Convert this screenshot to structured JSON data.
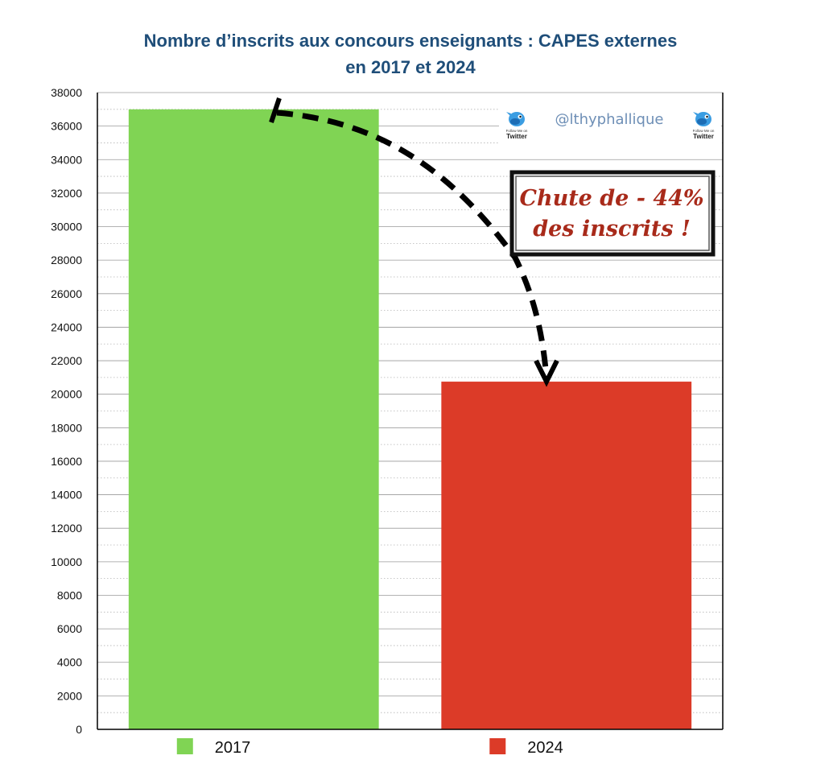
{
  "chart_data": {
    "type": "bar",
    "title": [
      "Nombre d’inscrits aux concours enseignants : CAPES externes",
      "en 2017 et 2024"
    ],
    "categories": [
      "2017",
      "2024"
    ],
    "values": [
      37000,
      20750
    ],
    "ylim": [
      0,
      38000
    ],
    "ytick_step": 2000,
    "yticks": [
      "0",
      "2000",
      "4000",
      "6000",
      "8000",
      "10000",
      "12000",
      "14000",
      "16000",
      "18000",
      "20000",
      "22000",
      "24000",
      "26000",
      "28000",
      "30000",
      "32000",
      "34000",
      "36000",
      "38000"
    ],
    "legend": [
      {
        "label": "2017",
        "color": "#80d454"
      },
      {
        "label": "2024",
        "color": "#dc3b28"
      }
    ],
    "legend_position": "bottom",
    "grid": true,
    "annotation": {
      "line1": "Chute de - 44%",
      "line2": "des inscrits !",
      "arrow_from": "2017",
      "arrow_to": "2024"
    }
  },
  "watermark": {
    "handle": "@lthyphallique",
    "follow_text": "Follow Me on",
    "twitter_text": "Twitter",
    "icon": "twitter-bird-icon"
  },
  "colors": {
    "title": "#1f4e79",
    "annotation": "#a82a1a",
    "bar_2017": "#80d454",
    "bar_2024": "#dc3b28",
    "handle": "#6e8fb6"
  }
}
